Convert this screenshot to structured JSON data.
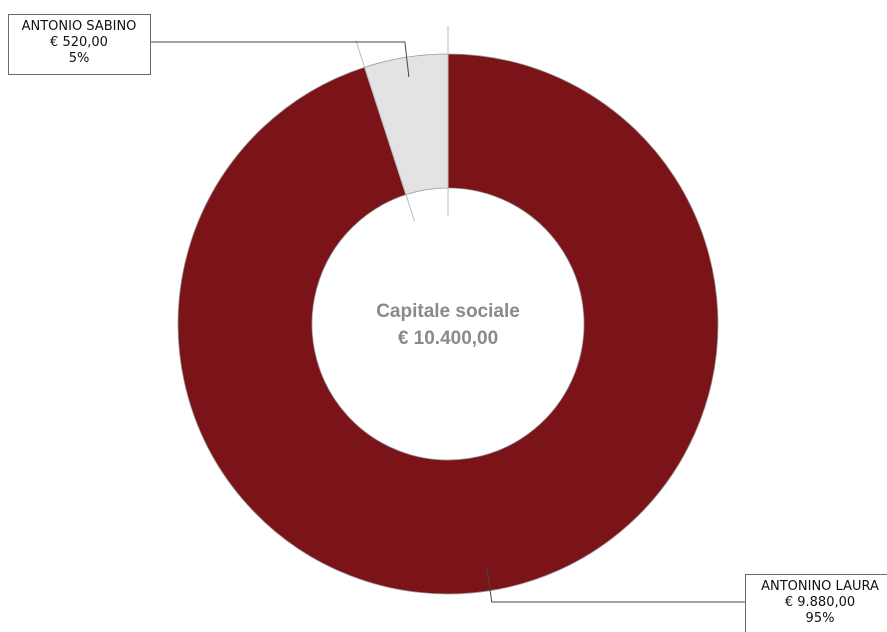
{
  "chart_data": {
    "type": "pie",
    "donut": true,
    "title": "",
    "center_label": {
      "title": "Capitale sociale",
      "value": "€ 10.400,00"
    },
    "total": 10400,
    "slices": [
      {
        "name": "ANTONINO LAURA",
        "value": 9880,
        "value_label": "€ 9.880,00",
        "percent_label": "95%",
        "color": "#7a1418",
        "label_position": "bottom-right"
      },
      {
        "name": "ANTONIO SABINO",
        "value": 520,
        "value_label": "€ 520,00",
        "percent_label": "5%",
        "color": "#e3e3e3",
        "label_position": "top-left"
      }
    ],
    "legend": "none",
    "grid": false
  }
}
